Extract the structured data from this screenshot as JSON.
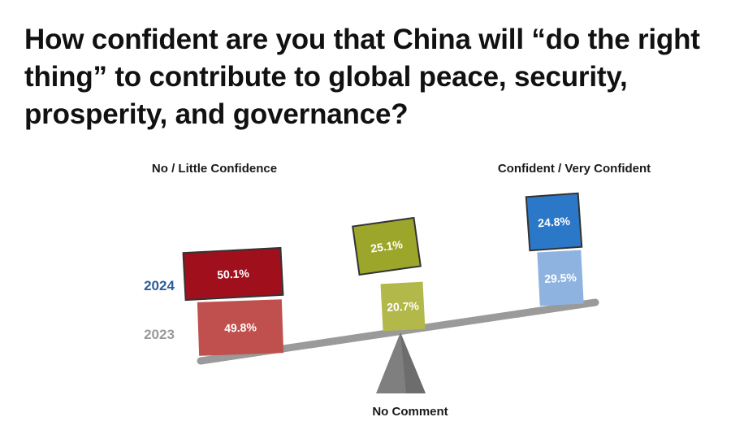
{
  "chart_data": {
    "type": "bar",
    "title": "How confident are you that China will “do the right thing” to contribute to global peace, security, prosperity, and governance?",
    "categories": [
      "No / Little Confidence",
      "No Comment",
      "Confident / Very Confident"
    ],
    "series": [
      {
        "name": "2023",
        "values": [
          49.8,
          20.7,
          29.5
        ]
      },
      {
        "name": "2024",
        "values": [
          50.1,
          25.1,
          24.8
        ]
      }
    ],
    "unit": "%",
    "value_labels": {
      "2023": [
        "49.8%",
        "20.7%",
        "29.5%"
      ],
      "2024": [
        "50.1%",
        "25.1%",
        "24.8%"
      ]
    },
    "year_labels": [
      "2024",
      "2023"
    ],
    "style": "stacked boxes balanced on a seesaw; 2024 box stacked on top of 2023 box",
    "colors": {
      "no_confidence_2023": "#c0504d",
      "no_confidence_2024": "#a0101c",
      "no_comment_2023": "#b3b84a",
      "no_comment_2024": "#9ca62a",
      "confident_2023": "#8fb3e0",
      "confident_2024": "#2c78c8",
      "year_2024": "#2d5d9a",
      "year_2023": "#9a9a9a",
      "beam": "#9a9a9a",
      "fulcrum": "#7f7f7f",
      "box_border": "#333333"
    }
  }
}
